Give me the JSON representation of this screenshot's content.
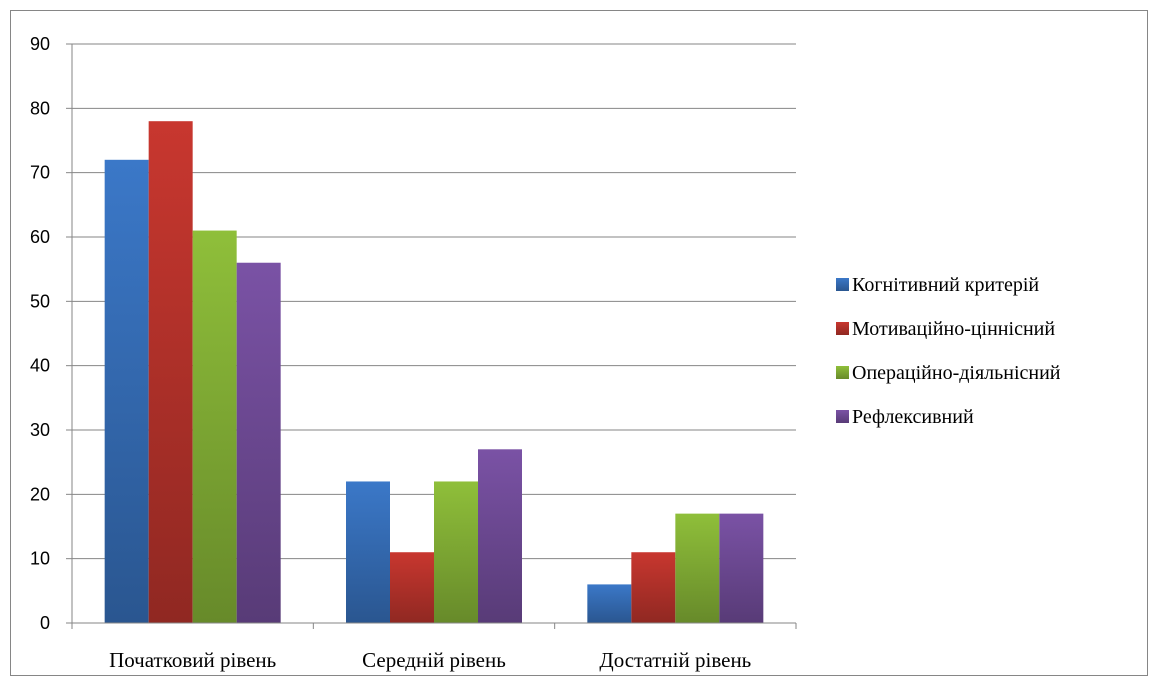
{
  "chart_data": {
    "type": "bar",
    "title": "",
    "xlabel": "",
    "ylabel": "",
    "categories": [
      "Початковий рівень",
      "Середній рівень",
      "Достатній рівень"
    ],
    "series": [
      {
        "name": "Когнітивний критерій",
        "values": [
          72,
          22,
          6
        ],
        "color": "#3b78c8"
      },
      {
        "name": "Мотиваційно-ціннісний",
        "values": [
          78,
          11,
          11
        ],
        "color": "#c8372f"
      },
      {
        "name": "Операційно-діяльнісний",
        "values": [
          61,
          22,
          17
        ],
        "color": "#8fbf3a"
      },
      {
        "name": "Рефлексивний",
        "values": [
          56,
          27,
          17
        ],
        "color": "#7a52a5"
      }
    ],
    "ylim": [
      0,
      90
    ],
    "yticks": [
      0,
      10,
      20,
      30,
      40,
      50,
      60,
      70,
      80,
      90
    ],
    "grid": true,
    "legend_position": "right"
  }
}
